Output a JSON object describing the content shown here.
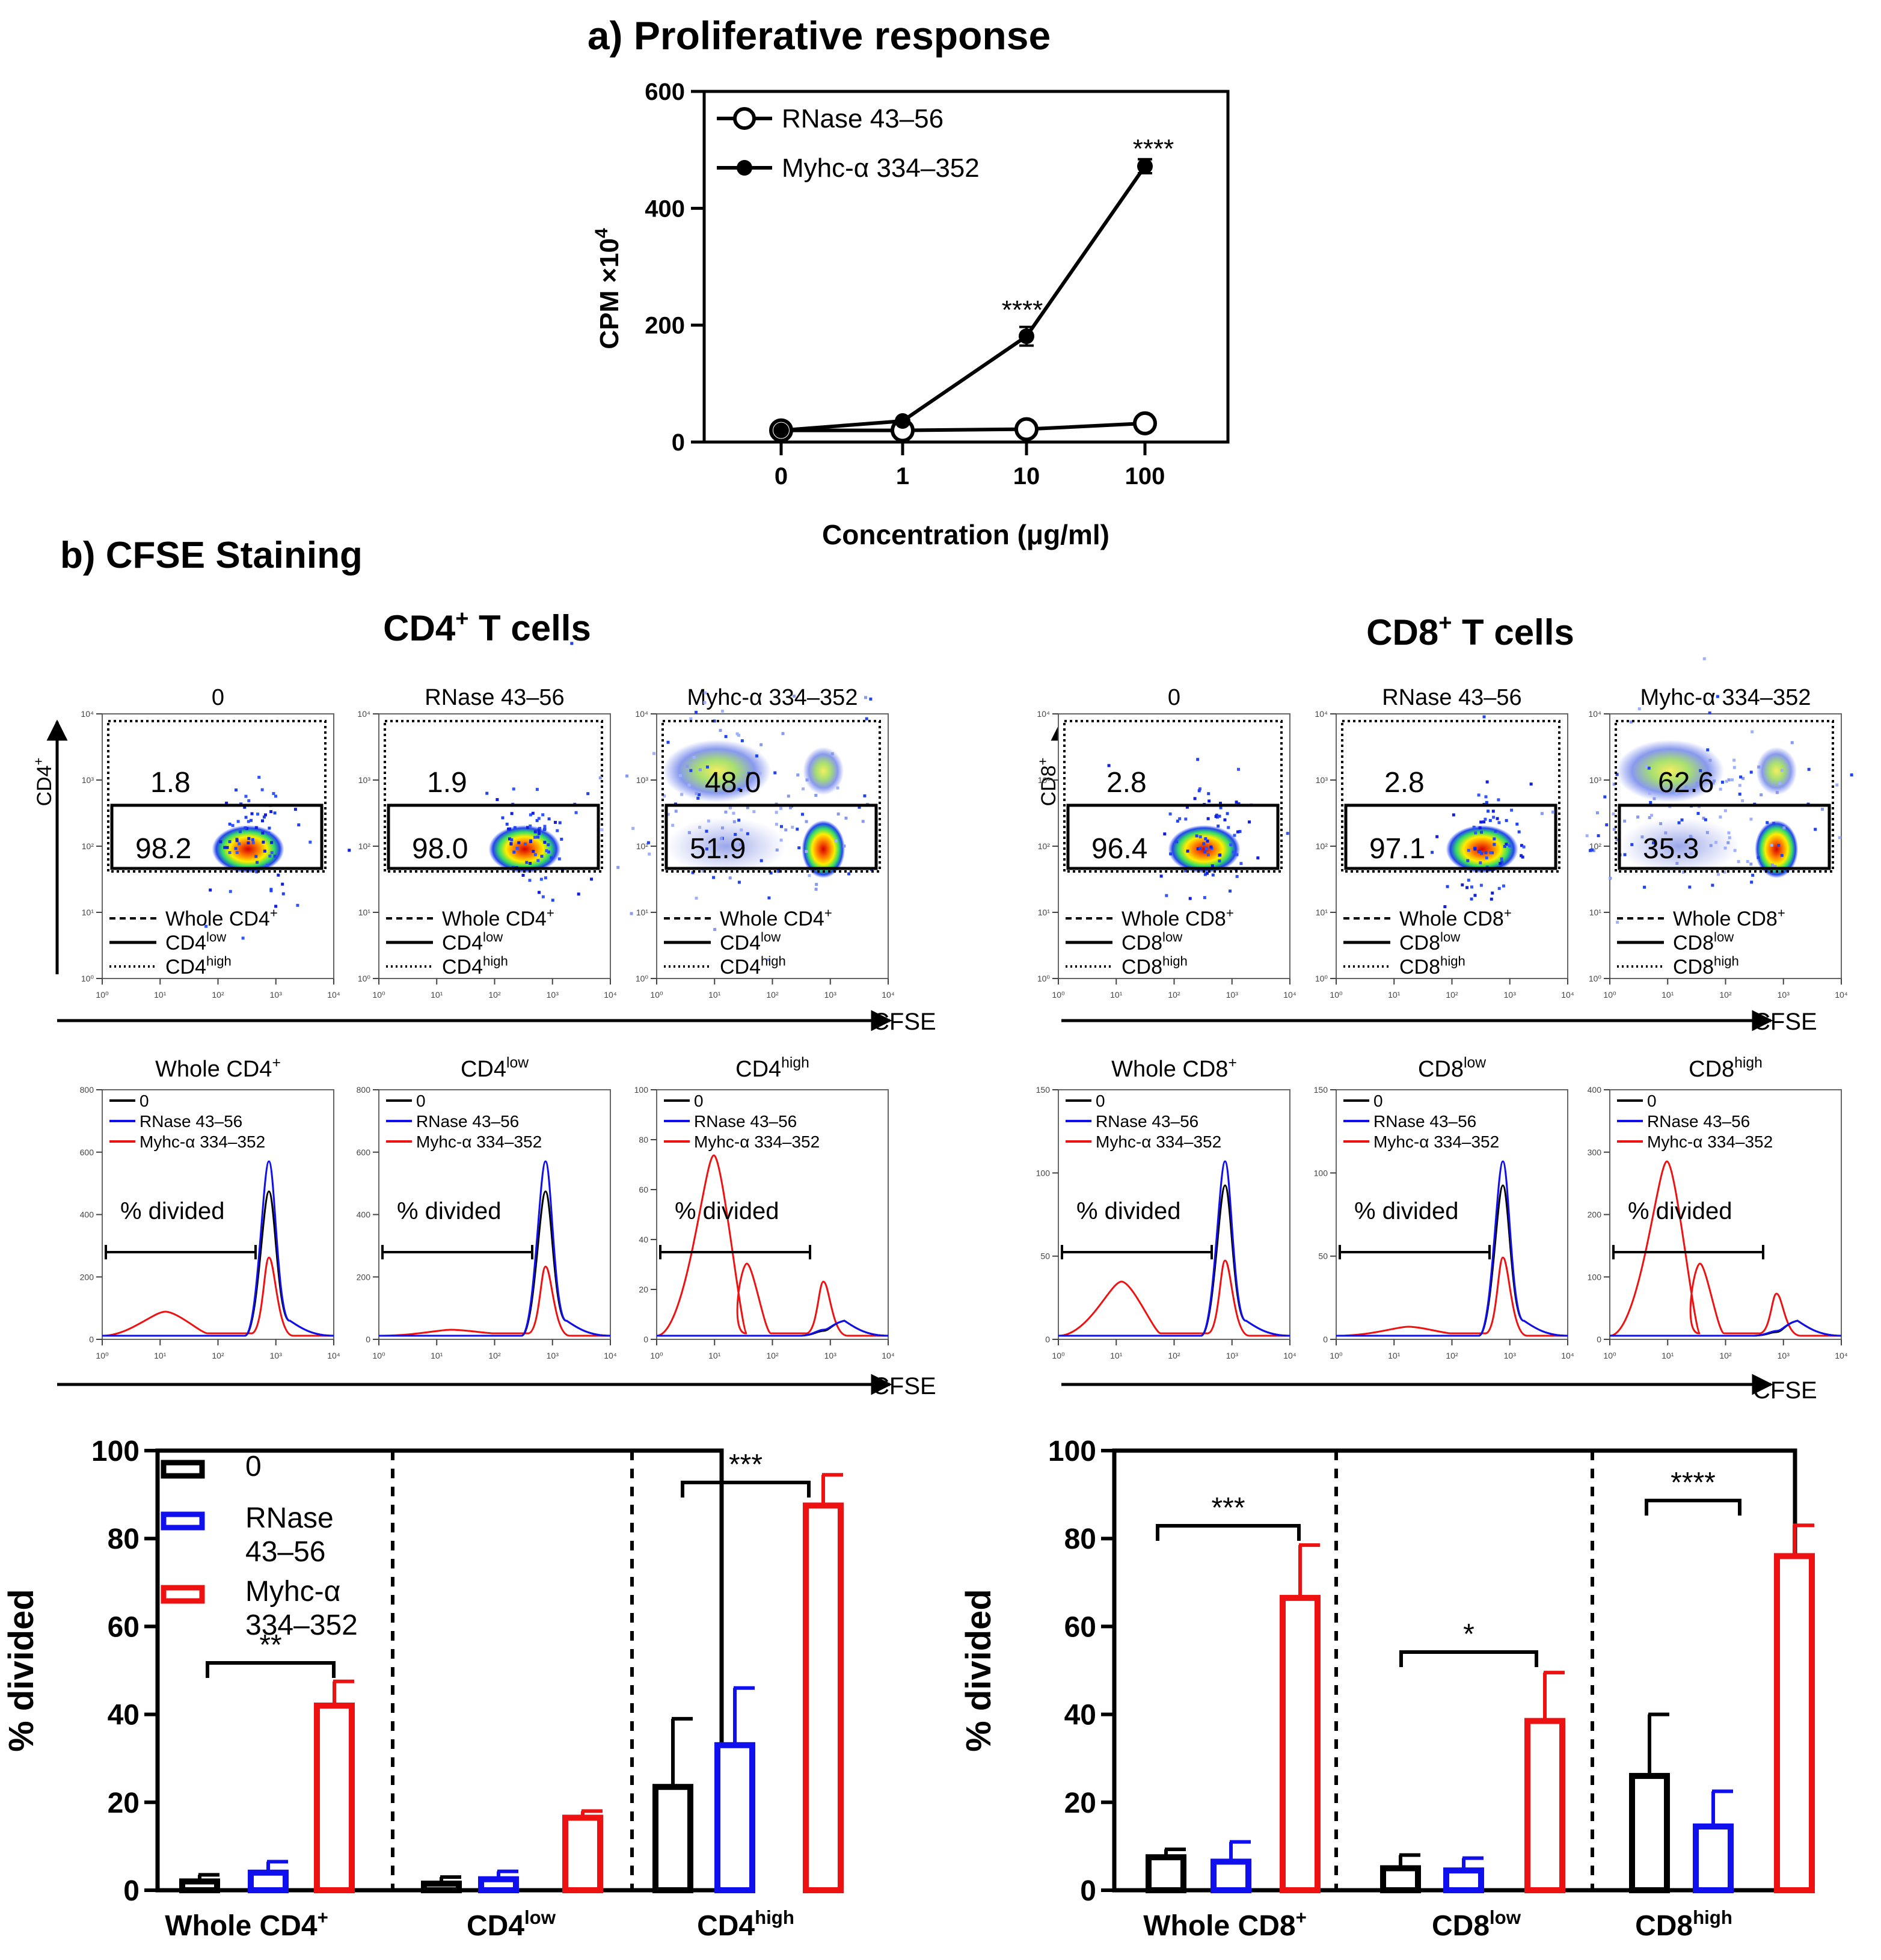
{
  "chart_data": [
    {
      "id": "proliferative",
      "type": "line",
      "title": "a) Proliferative response",
      "xlabel": "Concentration (μg/ml)",
      "ylabel": "CPM ×10",
      "ylabel_sup": "4",
      "x": [
        "0",
        "1",
        "10",
        "100"
      ],
      "ylim": [
        0,
        600
      ],
      "yticks": [
        "0",
        "200",
        "400",
        "600"
      ],
      "series": [
        {
          "name": "RNase 43–56",
          "marker": "open-circle",
          "values": [
            20,
            20,
            22,
            32
          ],
          "errors": [
            2,
            2,
            2,
            3
          ]
        },
        {
          "name": "Myhc-α 334–352",
          "marker": "filled-circle",
          "values": [
            20,
            36,
            181,
            472
          ],
          "errors": [
            2,
            3,
            16,
            12
          ]
        }
      ],
      "annotations": [
        "****",
        "****"
      ]
    },
    {
      "id": "cd4-bars",
      "type": "bar",
      "ylabel": "% divided",
      "ylim": [
        0,
        100
      ],
      "yticks": [
        "0",
        "20",
        "40",
        "60",
        "80",
        "100"
      ],
      "categories": [
        "Whole CD4",
        "CD4",
        "CD4"
      ],
      "category_sups": [
        "+",
        "low",
        "high"
      ],
      "series": [
        {
          "name": "0",
          "color": "#000000",
          "values": [
            2,
            1.5,
            23.5
          ],
          "errors": [
            1.5,
            1.5,
            15.5
          ]
        },
        {
          "name": "RNase 43–56",
          "color": "#1010ee",
          "values": [
            4,
            2.5,
            33
          ],
          "errors": [
            2.5,
            1.8,
            13
          ]
        },
        {
          "name": "Myhc-α 334–352",
          "color": "#ee1111",
          "values": [
            42,
            16.5,
            87.5
          ],
          "errors": [
            5.5,
            1.5,
            7
          ]
        }
      ],
      "legend": [
        "0",
        "RNase",
        "43–56",
        "Myhc-α",
        "334–352"
      ],
      "significance": [
        "**",
        "***"
      ]
    },
    {
      "id": "cd8-bars",
      "type": "bar",
      "ylabel": "% divided",
      "ylim": [
        0,
        100
      ],
      "yticks": [
        "0",
        "20",
        "40",
        "60",
        "80",
        "100"
      ],
      "categories": [
        "Whole CD8",
        "CD8",
        "CD8"
      ],
      "category_sups": [
        "+",
        "low",
        "high"
      ],
      "series": [
        {
          "name": "0",
          "color": "#000000",
          "values": [
            7.5,
            5,
            26
          ],
          "errors": [
            1.8,
            3,
            14
          ]
        },
        {
          "name": "RNase 43–56",
          "color": "#1010ee",
          "values": [
            6.5,
            4.5,
            14.5
          ],
          "errors": [
            4.5,
            2.8,
            8
          ]
        },
        {
          "name": "Myhc-α 334–352",
          "color": "#ee1111",
          "values": [
            66.5,
            38.5,
            76
          ],
          "errors": [
            12,
            11,
            7
          ]
        }
      ],
      "significance": [
        "***",
        "*",
        "****"
      ]
    }
  ],
  "cfse": {
    "title": "b) CFSE Staining",
    "cd4_title": "CD4",
    "cd8_title": "CD8",
    "title_suffix": " T cells",
    "plus": "+",
    "conditions": [
      "0",
      "RNase 43–56",
      "Myhc-α 334–352"
    ],
    "cfse_label": "CFSE",
    "dens_ticks": [
      "10⁰",
      "10¹",
      "10²",
      "10³",
      "10⁴"
    ],
    "cd4": {
      "ylab": "CD4",
      "high": [
        "1.8",
        "1.9",
        "48.0"
      ],
      "low": [
        "98.2",
        "98.0",
        "51.9"
      ],
      "legend_whole": "Whole CD4",
      "legend_low": "CD4",
      "legend_high": "CD4",
      "hist_titles": [
        "Whole CD4",
        "CD4",
        "CD4"
      ],
      "hist_ticks": [
        [
          "0",
          "200",
          "400",
          "600",
          "800"
        ],
        [
          "0",
          "200",
          "400",
          "600",
          "800"
        ],
        [
          "0",
          "20",
          "40",
          "60",
          "80",
          "100"
        ]
      ]
    },
    "cd8": {
      "ylab": "CD8",
      "high": [
        "2.8",
        "2.8",
        "62.6"
      ],
      "low": [
        "96.4",
        "97.1",
        "35.3"
      ],
      "legend_whole": "Whole CD8",
      "legend_low": "CD8",
      "legend_high": "CD8",
      "hist_titles": [
        "Whole CD8",
        "CD8",
        "CD8"
      ],
      "hist_ticks": [
        [
          "0",
          "50",
          "100",
          "150"
        ],
        [
          "0",
          "50",
          "100",
          "150"
        ],
        [
          "0",
          "100",
          "200",
          "300",
          "400"
        ]
      ]
    },
    "sup_low": "low",
    "sup_high": "high",
    "hist_legend": [
      "0",
      "RNase 43–56",
      "Myhc-α 334–352"
    ],
    "divided_label": "% divided"
  }
}
